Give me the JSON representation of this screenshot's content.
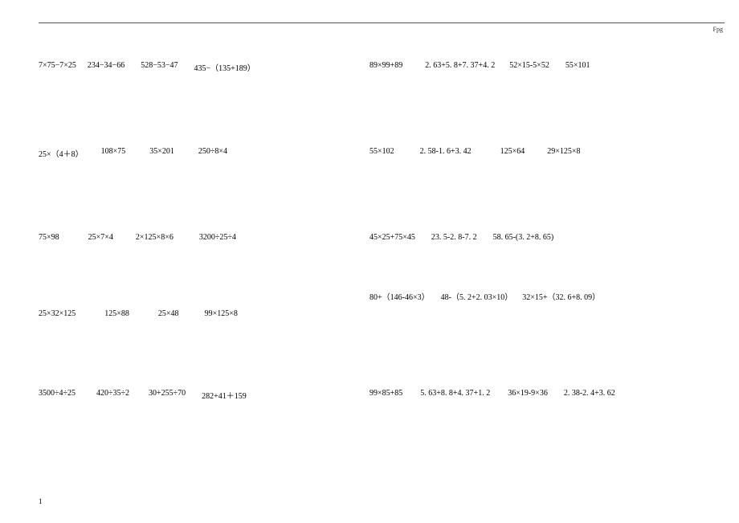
{
  "header_label": "Fpg",
  "footer_mark": "1",
  "rows": [
    {
      "left": [
        {
          "text": "7×75−7×25",
          "ml": 0
        },
        {
          "text": "234−34−66",
          "ml": 14
        },
        {
          "text": "528−53−47",
          "ml": 20
        },
        {
          "text": "435−（135+189）",
          "ml": 20
        }
      ],
      "right": [
        {
          "text": "89×99+89",
          "ml": 0
        },
        {
          "text": "2. 63+5. 8+7. 37+4. 2",
          "ml": 28
        },
        {
          "text": "52×15-5×52",
          "ml": 18
        },
        {
          "text": "55×101",
          "ml": 20
        }
      ],
      "right_offset": false
    },
    {
      "left": [
        {
          "text": "25×（4＋8）",
          "ml": 0
        },
        {
          "text": "108×75",
          "ml": 22
        },
        {
          "text": "35×201",
          "ml": 30
        },
        {
          "text": "250÷8×4",
          "ml": 30
        }
      ],
      "right": [
        {
          "text": "55×102",
          "ml": 0
        },
        {
          "text": "2. 58-1. 6+3. 42",
          "ml": 32
        },
        {
          "text": "125×64",
          "ml": 36
        },
        {
          "text": "29×125×8",
          "ml": 28
        }
      ],
      "right_offset": false
    },
    {
      "left": [
        {
          "text": "75×98",
          "ml": 0
        },
        {
          "text": "25×7×4",
          "ml": 36
        },
        {
          "text": "2×125×8×6",
          "ml": 28
        },
        {
          "text": "3200÷25÷4",
          "ml": 32
        }
      ],
      "right": [
        {
          "text": "45×25+75×45",
          "ml": 0
        },
        {
          "text": "23. 5-2. 8-7. 2",
          "ml": 20
        },
        {
          "text": "58. 65-(3. 2+8. 65)",
          "ml": 20
        }
      ],
      "right_offset": false
    },
    {
      "left": [
        {
          "text": "25×32×125",
          "ml": 0
        },
        {
          "text": "125×88",
          "ml": 36
        },
        {
          "text": "25×48",
          "ml": 36
        },
        {
          "text": "99×125×8",
          "ml": 32
        }
      ],
      "right": [
        {
          "text": "80+（146-46×3）",
          "ml": 0
        },
        {
          "text": "48-（5. 2+2. 03×10）",
          "ml": 14
        },
        {
          "text": "32×15+（32. 6+8. 09）",
          "ml": 12
        }
      ],
      "right_offset": true
    },
    {
      "left": [
        {
          "text": "3500÷4÷25",
          "ml": 0
        },
        {
          "text": "420÷35÷2",
          "ml": 26
        },
        {
          "text": "30+255÷70",
          "ml": 24
        },
        {
          "text": "282+41＋159",
          "ml": 20
        }
      ],
      "right": [
        {
          "text": "99×85+85",
          "ml": 0
        },
        {
          "text": "5. 63+8. 8+4. 37+1. 2",
          "ml": 22
        },
        {
          "text": "36×19-9×36",
          "ml": 22
        },
        {
          "text": "2. 38-2. 4+3. 62",
          "ml": 20
        }
      ],
      "right_offset": false
    }
  ]
}
